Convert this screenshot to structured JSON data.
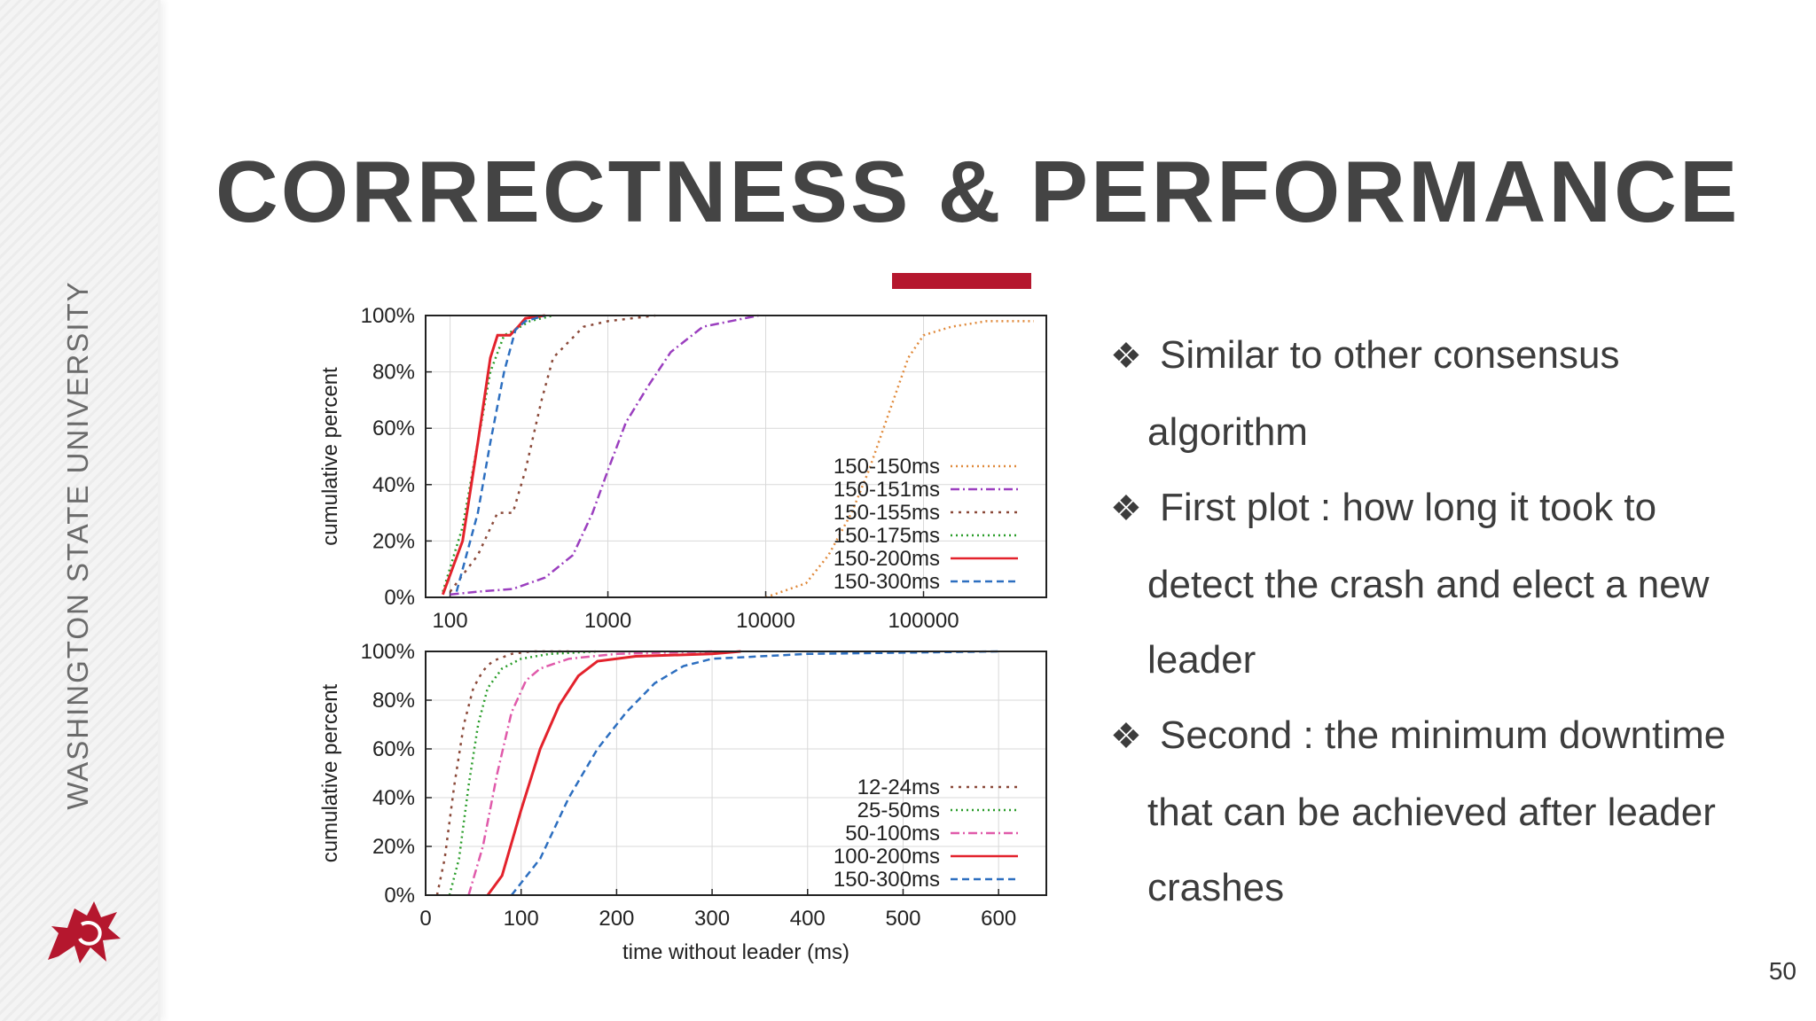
{
  "slide": {
    "university": "WASHINGTON STATE UNIVERSITY",
    "title": "CORRECTNESS & PERFORMANCE",
    "accent_color": "#b5172e",
    "page_number": "50",
    "bullets": [
      {
        "line1": "Similar to other consensus",
        "line2": "algorithm"
      },
      {
        "line1": "First plot : how long it took to",
        "line2": "detect the crash and elect a new",
        "line3": "leader"
      },
      {
        "line1": "Second : the minimum downtime",
        "line2": "that can be achieved after leader",
        "line3": "crashes"
      }
    ],
    "bullet_icon": "four-diamond-bullet-icon"
  },
  "chart_data": [
    {
      "type": "line",
      "xscale": "log",
      "xlim": [
        70,
        600000
      ],
      "ylim": [
        0,
        100
      ],
      "xticks": [
        "100",
        "1000",
        "10000",
        "100000"
      ],
      "yticks": [
        "0%",
        "20%",
        "40%",
        "60%",
        "80%",
        "100%"
      ],
      "ylabel": "cumulative percent",
      "xlabel": "",
      "grid": true,
      "legend_position": "right",
      "series": [
        {
          "name": "150-150ms",
          "color": "#e08a3c",
          "dash": "2 4",
          "x": [
            10000,
            18000,
            25000,
            35000,
            45000,
            60000,
            80000,
            100000,
            150000,
            250000,
            500000
          ],
          "y": [
            0,
            5,
            15,
            30,
            45,
            65,
            85,
            93,
            96,
            98,
            98
          ]
        },
        {
          "name": "150-151ms",
          "color": "#9b3fbf",
          "dash": "10 4 2 4",
          "x": [
            100,
            150,
            250,
            400,
            600,
            800,
            1000,
            1300,
            1800,
            2500,
            4000,
            9000
          ],
          "y": [
            1,
            2,
            3,
            7,
            15,
            30,
            45,
            62,
            75,
            87,
            96,
            100
          ]
        },
        {
          "name": "150-155ms",
          "color": "#8b4a3a",
          "dash": "3 6",
          "x": [
            100,
            150,
            200,
            250,
            300,
            380,
            450,
            550,
            700,
            1000,
            2000
          ],
          "y": [
            2,
            15,
            30,
            30,
            45,
            70,
            85,
            90,
            96,
            98,
            100
          ]
        },
        {
          "name": "150-175ms",
          "color": "#2a9d2a",
          "dash": "2 4",
          "x": [
            90,
            120,
            150,
            180,
            220,
            260,
            320,
            450
          ],
          "y": [
            2,
            25,
            55,
            80,
            93,
            95,
            98,
            100
          ]
        },
        {
          "name": "150-200ms",
          "color": "#e3222c",
          "dash": "",
          "x": [
            90,
            120,
            150,
            180,
            200,
            240,
            270,
            300,
            400
          ],
          "y": [
            1,
            20,
            55,
            85,
            93,
            93,
            96,
            99,
            100
          ]
        },
        {
          "name": "150-300ms",
          "color": "#2d6fc0",
          "dash": "8 5",
          "x": [
            110,
            150,
            180,
            220,
            260,
            300,
            400
          ],
          "y": [
            2,
            30,
            55,
            80,
            95,
            98,
            100
          ]
        }
      ]
    },
    {
      "type": "line",
      "xlim": [
        0,
        650
      ],
      "ylim": [
        0,
        100
      ],
      "xticks": [
        "0",
        "100",
        "200",
        "300",
        "400",
        "500",
        "600"
      ],
      "yticks": [
        "0%",
        "20%",
        "40%",
        "60%",
        "80%",
        "100%"
      ],
      "ylabel": "cumulative percent",
      "xlabel": "time without leader (ms)",
      "grid": true,
      "legend_position": "right",
      "series": [
        {
          "name": "12-24ms",
          "color": "#8b4a3a",
          "dash": "3 6",
          "x": [
            12,
            20,
            30,
            40,
            50,
            60,
            70,
            90,
            110,
            150
          ],
          "y": [
            0,
            15,
            45,
            70,
            85,
            92,
            96,
            99,
            100,
            100
          ]
        },
        {
          "name": "25-50ms",
          "color": "#2a9d2a",
          "dash": "2 4",
          "x": [
            25,
            35,
            45,
            55,
            65,
            80,
            100,
            130,
            180
          ],
          "y": [
            0,
            15,
            45,
            70,
            85,
            93,
            97,
            99,
            100
          ]
        },
        {
          "name": "50-100ms",
          "color": "#e05aaa",
          "dash": "10 4 2 4",
          "x": [
            45,
            60,
            75,
            90,
            105,
            120,
            150,
            200,
            300
          ],
          "y": [
            0,
            20,
            50,
            75,
            88,
            93,
            97,
            99,
            100
          ]
        },
        {
          "name": "100-200ms",
          "color": "#e3222c",
          "dash": "",
          "x": [
            65,
            80,
            100,
            120,
            140,
            160,
            180,
            220,
            300,
            330
          ],
          "y": [
            0,
            8,
            35,
            60,
            78,
            90,
            96,
            98,
            99,
            100
          ]
        },
        {
          "name": "150-300ms",
          "color": "#2d6fc0",
          "dash": "8 5",
          "x": [
            90,
            120,
            150,
            180,
            210,
            240,
            270,
            300,
            400,
            600
          ],
          "y": [
            0,
            15,
            40,
            60,
            75,
            87,
            94,
            97,
            99,
            100
          ]
        }
      ]
    }
  ]
}
